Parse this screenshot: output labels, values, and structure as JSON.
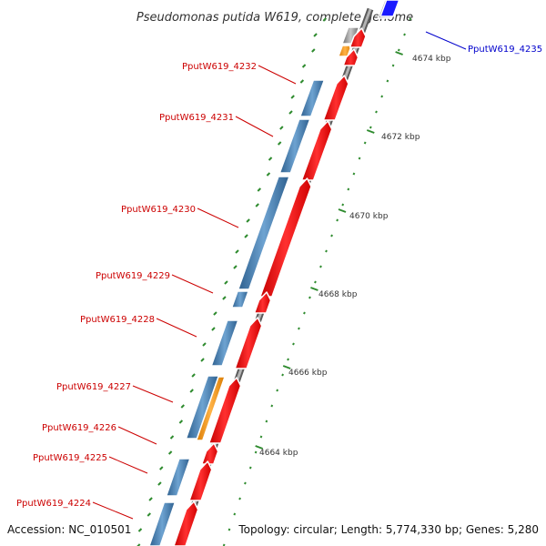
{
  "title": "Pseudomonas putida W619, complete genome",
  "footer": {
    "accession": "Accession: NC_010501",
    "summary": "Topology: circular; Length: 5,774,330 bp; Genes: 5,280"
  },
  "colors": {
    "backbone": "#8c8c8c",
    "cds_forward": "#ff0000",
    "cds_reverse": "#4682b4",
    "other_feature": "#ff9900",
    "highlight": "#0000ff",
    "gc_skew_positive": "#2e8b2e",
    "label_red": "#cc0000",
    "label_blue": "#0000cc"
  },
  "gene_labels": [
    {
      "id": "g4235",
      "text": "PputW619_4235",
      "color": "blue"
    },
    {
      "id": "g4232",
      "text": "PputW619_4232",
      "color": "red"
    },
    {
      "id": "g4231",
      "text": "PputW619_4231",
      "color": "red"
    },
    {
      "id": "g4230",
      "text": "PputW619_4230",
      "color": "red"
    },
    {
      "id": "g4229",
      "text": "PputW619_4229",
      "color": "red"
    },
    {
      "id": "g4228",
      "text": "PputW619_4228",
      "color": "red"
    },
    {
      "id": "g4227",
      "text": "PputW619_4227",
      "color": "red"
    },
    {
      "id": "g4226",
      "text": "PputW619_4226",
      "color": "red"
    },
    {
      "id": "g4225",
      "text": "PputW619_4225",
      "color": "red"
    },
    {
      "id": "g4224",
      "text": "PputW619_4224",
      "color": "red"
    }
  ],
  "ticks": [
    "4674 kbp",
    "4672 kbp",
    "4670 kbp",
    "4668 kbp",
    "4666 kbp",
    "4664 kbp"
  ]
}
